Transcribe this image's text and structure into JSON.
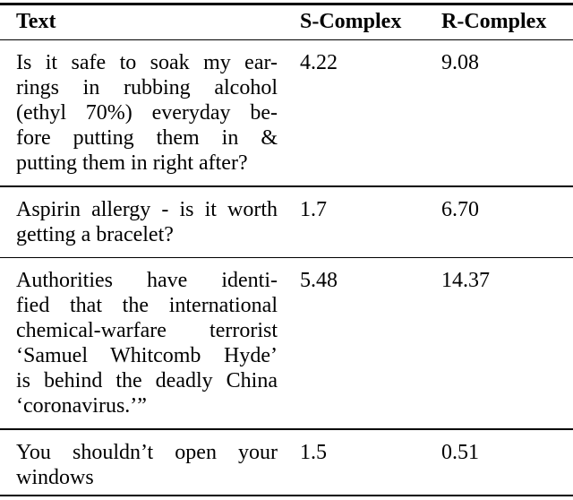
{
  "table": {
    "columns": [
      "Text",
      "S-Complex",
      "R-Complex"
    ],
    "rows": [
      {
        "text_lines": [
          "Is it safe to soak my ear-",
          "rings in rubbing alcohol",
          "(ethyl 70%) everyday be-",
          "fore putting them in &",
          "putting them in right after?"
        ],
        "s_complex": "4.22",
        "r_complex": "9.08"
      },
      {
        "text_lines": [
          "Aspirin allergy - is it worth",
          "getting a bracelet?"
        ],
        "s_complex": "1.7",
        "r_complex": "6.70"
      },
      {
        "text_lines": [
          "Authorities have identi-",
          "fied that the international",
          "chemical-warfare terrorist",
          "‘Samuel Whitcomb Hyde’",
          "is behind the deadly China",
          "‘coronavirus.’”"
        ],
        "s_complex": "5.48",
        "r_complex": "14.37"
      },
      {
        "text_lines": [
          "You shouldn’t open your",
          "windows"
        ],
        "s_complex": "1.5",
        "r_complex": "0.51"
      }
    ],
    "text_color": "#000000",
    "background_color": "#ffffff"
  }
}
